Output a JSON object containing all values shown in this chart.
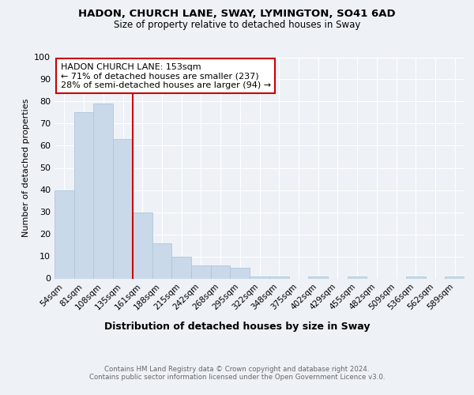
{
  "title1": "HADON, CHURCH LANE, SWAY, LYMINGTON, SO41 6AD",
  "title2": "Size of property relative to detached houses in Sway",
  "xlabel": "Distribution of detached houses by size in Sway",
  "ylabel": "Number of detached properties",
  "categories": [
    "54sqm",
    "81sqm",
    "108sqm",
    "135sqm",
    "161sqm",
    "188sqm",
    "215sqm",
    "242sqm",
    "268sqm",
    "295sqm",
    "322sqm",
    "348sqm",
    "375sqm",
    "402sqm",
    "429sqm",
    "455sqm",
    "482sqm",
    "509sqm",
    "536sqm",
    "562sqm",
    "589sqm"
  ],
  "values": [
    40,
    75,
    79,
    63,
    30,
    16,
    10,
    6,
    6,
    5,
    1,
    1,
    0,
    1,
    0,
    1,
    0,
    0,
    1,
    0,
    1
  ],
  "bar_color": "#c9d9ea",
  "bar_edge_color": "#aec6d8",
  "vline_color": "#cc0000",
  "annotation_text": "HADON CHURCH LANE: 153sqm\n← 71% of detached houses are smaller (237)\n28% of semi-detached houses are larger (94) →",
  "annotation_box_color": "#ffffff",
  "annotation_box_edge": "#cc0000",
  "ylim": [
    0,
    100
  ],
  "yticks": [
    0,
    10,
    20,
    30,
    40,
    50,
    60,
    70,
    80,
    90,
    100
  ],
  "background_color": "#eef2f7",
  "grid_color": "#ffffff",
  "footnote": "Contains HM Land Registry data © Crown copyright and database right 2024.\nContains public sector information licensed under the Open Government Licence v3.0."
}
